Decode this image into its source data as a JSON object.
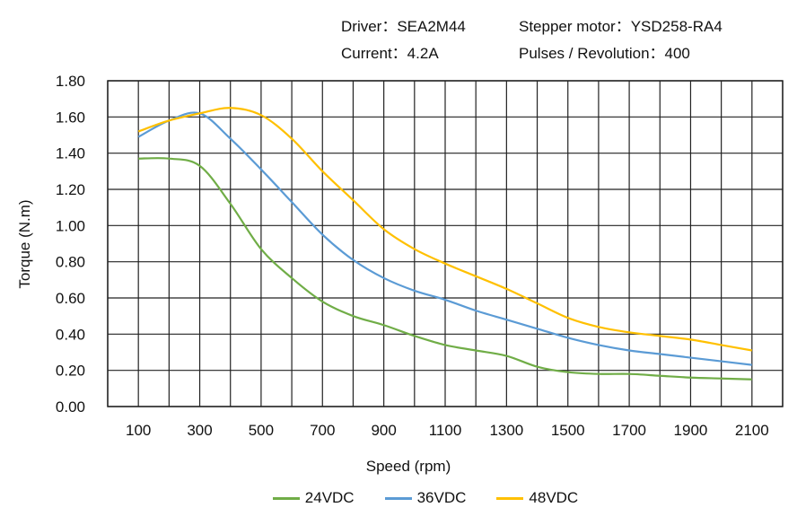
{
  "header": {
    "driver": "Driver：SEA2M44",
    "motor": "Stepper motor：YSD258-RA4",
    "current": "Current：4.2A",
    "pulses": "Pulses / Revolution：400"
  },
  "chart_data": {
    "type": "line",
    "title": "",
    "xlabel": "Speed  (rpm)",
    "ylabel": "Torque (N.m)",
    "xlim": [
      0,
      2200
    ],
    "ylim": [
      0,
      1.8
    ],
    "grid": true,
    "legend_position": "bottom",
    "x_tick_labels": [
      "100",
      "300",
      "500",
      "700",
      "900",
      "1100",
      "1300",
      "1500",
      "1700",
      "1900",
      "2100"
    ],
    "y_tick_labels": [
      "0.00",
      "0.20",
      "0.40",
      "0.60",
      "0.80",
      "1.00",
      "1.20",
      "1.40",
      "1.60",
      "1.80"
    ],
    "x": [
      100,
      200,
      300,
      400,
      500,
      600,
      700,
      800,
      900,
      1000,
      1100,
      1200,
      1300,
      1400,
      1500,
      1600,
      1700,
      1800,
      1900,
      2000,
      2100
    ],
    "series": [
      {
        "name": "24VDC",
        "color": "#70ad47",
        "values": [
          1.37,
          1.37,
          1.33,
          1.12,
          0.87,
          0.71,
          0.58,
          0.5,
          0.45,
          0.39,
          0.34,
          0.31,
          0.28,
          0.22,
          0.19,
          0.18,
          0.18,
          0.17,
          0.16,
          0.155,
          0.15
        ]
      },
      {
        "name": "36VDC",
        "color": "#5b9bd5",
        "values": [
          1.49,
          1.58,
          1.62,
          1.48,
          1.31,
          1.13,
          0.95,
          0.81,
          0.71,
          0.64,
          0.59,
          0.53,
          0.48,
          0.43,
          0.38,
          0.34,
          0.31,
          0.29,
          0.27,
          0.25,
          0.23
        ]
      },
      {
        "name": "48VDC",
        "color": "#ffc000",
        "values": [
          1.52,
          1.58,
          1.62,
          1.65,
          1.61,
          1.48,
          1.3,
          1.14,
          0.98,
          0.87,
          0.79,
          0.72,
          0.65,
          0.57,
          0.49,
          0.44,
          0.41,
          0.39,
          0.37,
          0.34,
          0.31
        ]
      }
    ]
  }
}
